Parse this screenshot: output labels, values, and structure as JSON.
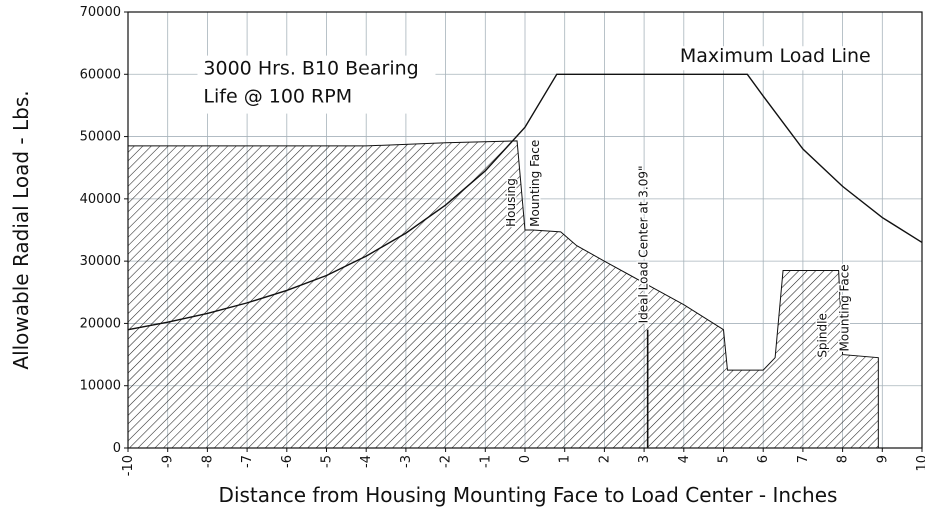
{
  "chart_data": {
    "type": "area",
    "xlabel": "Distance from Housing Mounting Face to Load Center - Inches",
    "ylabel": "Allowable Radial Load - Lbs.",
    "xlim": [
      -10,
      10
    ],
    "ylim": [
      0,
      70000
    ],
    "x_ticks": [
      -10,
      -9,
      -8,
      -7,
      -6,
      -5,
      -4,
      -3,
      -2,
      -1,
      0,
      1,
      2,
      3,
      4,
      5,
      6,
      7,
      8,
      9,
      10
    ],
    "y_ticks": [
      0,
      10000,
      20000,
      30000,
      40000,
      50000,
      60000,
      70000
    ],
    "grid": true,
    "series": [
      {
        "name": "Maximum Load Line",
        "kind": "line",
        "x": [
          -10,
          -9,
          -8,
          -7,
          -6,
          -5,
          -4,
          -3,
          -2,
          -1,
          0,
          0.8,
          2,
          3,
          4,
          5,
          5.6,
          6,
          7,
          8,
          9,
          10
        ],
        "y": [
          19000,
          20200,
          21600,
          23300,
          25300,
          27700,
          30800,
          34500,
          39000,
          44500,
          51500,
          60000,
          60000,
          60000,
          60000,
          60000,
          60000,
          56500,
          48000,
          42000,
          37000,
          33000
        ]
      },
      {
        "name": "",
        "kind": "hatched-area",
        "x": [
          -10,
          -4,
          -2,
          -0.2,
          0,
          0.2,
          0.9,
          1.3,
          2,
          3,
          4,
          5,
          5.1,
          6,
          6.3,
          6.5,
          7.2,
          7.9,
          8,
          8.9
        ],
        "y": [
          48500,
          48500,
          49000,
          49300,
          35000,
          35000,
          34700,
          32500,
          30000,
          26500,
          23000,
          19000,
          12500,
          12500,
          14500,
          28500,
          28500,
          28500,
          15000,
          14500
        ]
      }
    ],
    "annotations": [
      {
        "text": "Maximum Load Line",
        "x": 3.9,
        "y": 62000
      },
      {
        "text": "3000 Hrs. B10 Bearing",
        "x": -8.1,
        "y": 60000
      },
      {
        "text": "Life @ 100 RPM",
        "x": -8.1,
        "y": 55500
      },
      {
        "text": "Housing",
        "x": -0.25,
        "y": 35500,
        "rotate": -90
      },
      {
        "text": "Mounting Face",
        "x": 0.35,
        "y": 35500,
        "rotate": -90
      },
      {
        "text": "Ideal Load Center at 3.09\"",
        "x": 3.09,
        "y": 20000,
        "rotate": -90
      },
      {
        "text": "Spindle",
        "x": 7.6,
        "y": 14500,
        "rotate": -90
      },
      {
        "text": "Mounting Face",
        "x": 8.15,
        "y": 15500,
        "rotate": -90
      }
    ]
  }
}
